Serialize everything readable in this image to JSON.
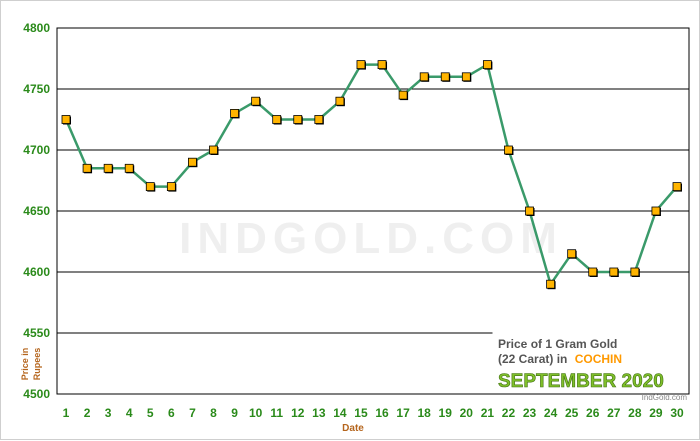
{
  "chart_data": {
    "type": "line",
    "title_line1": "Price of 1 Gram Gold",
    "title_line2_prefix": "(22 Carat) in",
    "city": "COCHIN",
    "month_label": "SEPTEMBER 2020",
    "credit": "IndGold.com",
    "watermark": "INDGOLD.COM",
    "xlabel": "Date",
    "ylabel_line1": "Price in",
    "ylabel_line2": "Rupees",
    "ylim": [
      4500,
      4800
    ],
    "yticks": [
      4500,
      4550,
      4600,
      4650,
      4700,
      4750,
      4800
    ],
    "x": [
      1,
      2,
      3,
      4,
      5,
      6,
      7,
      8,
      9,
      10,
      11,
      12,
      13,
      14,
      15,
      16,
      17,
      18,
      19,
      20,
      21,
      22,
      23,
      24,
      25,
      26,
      27,
      28,
      29,
      30
    ],
    "values": [
      4725,
      4685,
      4685,
      4685,
      4670,
      4670,
      4690,
      4700,
      4730,
      4740,
      4725,
      4725,
      4725,
      4740,
      4770,
      4770,
      4745,
      4760,
      4760,
      4760,
      4770,
      4700,
      4650,
      4590,
      4615,
      4600,
      4600,
      4600,
      4650,
      4670
    ],
    "grid": true,
    "colors": {
      "line": "#3a9a6a",
      "marker_fill": "#ffb400",
      "marker_stroke": "#000000",
      "tick_text": "#2a8a1a",
      "axis_title": "#b5651d",
      "gridline": "#000000",
      "city": "#ff9900",
      "month": "#7fbf2a"
    }
  }
}
